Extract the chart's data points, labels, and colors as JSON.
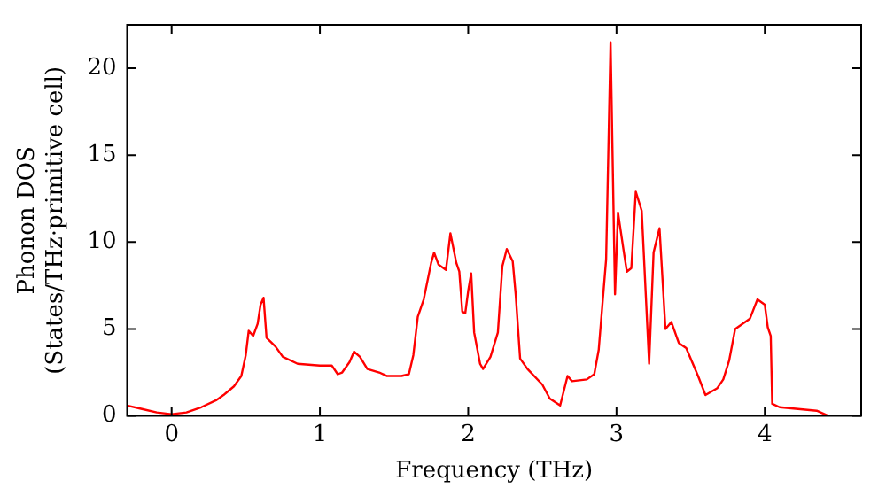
{
  "chart_data": {
    "type": "line",
    "xlabel": "Frequency (THz)",
    "ylabel": "Phonon DOS\n(States/THz·primitive cell)",
    "xlim": [
      -0.3,
      4.65
    ],
    "ylim": [
      0,
      22.5
    ],
    "xticks": [
      0,
      1,
      2,
      3,
      4
    ],
    "yticks": [
      0,
      5,
      10,
      15,
      20
    ],
    "grid": false,
    "legend": false,
    "marker": "none",
    "line_style": "solid",
    "x": [
      -0.3,
      -0.2,
      -0.1,
      0,
      0.1,
      0.2,
      0.3,
      0.35,
      0.42,
      0.47,
      0.5,
      0.52,
      0.55,
      0.58,
      0.6,
      0.62,
      0.64,
      0.7,
      0.75,
      0.85,
      1.0,
      1.08,
      1.12,
      1.15,
      1.2,
      1.23,
      1.27,
      1.32,
      1.4,
      1.45,
      1.55,
      1.6,
      1.63,
      1.66,
      1.7,
      1.75,
      1.77,
      1.8,
      1.85,
      1.88,
      1.92,
      1.94,
      1.96,
      1.98,
      2.0,
      2.02,
      2.04,
      2.08,
      2.1,
      2.15,
      2.2,
      2.23,
      2.26,
      2.3,
      2.32,
      2.35,
      2.4,
      2.5,
      2.55,
      2.62,
      2.67,
      2.7,
      2.8,
      2.85,
      2.88,
      2.93,
      2.96,
      2.99,
      3.01,
      3.05,
      3.07,
      3.1,
      3.13,
      3.17,
      3.22,
      3.25,
      3.29,
      3.33,
      3.37,
      3.42,
      3.47,
      3.55,
      3.6,
      3.68,
      3.72,
      3.76,
      3.8,
      3.9,
      3.95,
      4.0,
      4.02,
      4.04,
      4.05,
      4.1,
      4.35,
      4.43
    ],
    "series": [
      {
        "color": "#ff0000",
        "values": [
          0.6,
          0.4,
          0.2,
          0.1,
          0.2,
          0.5,
          0.9,
          1.2,
          1.7,
          2.3,
          3.5,
          4.9,
          4.6,
          5.3,
          6.4,
          6.8,
          4.5,
          4.0,
          3.4,
          3.0,
          2.9,
          2.9,
          2.4,
          2.5,
          3.1,
          3.7,
          3.4,
          2.7,
          2.5,
          2.3,
          2.3,
          2.4,
          3.5,
          5.7,
          6.7,
          8.8,
          9.4,
          8.7,
          8.4,
          10.5,
          8.8,
          8.3,
          6.0,
          5.9,
          7.2,
          8.2,
          4.8,
          3.0,
          2.7,
          3.4,
          4.8,
          8.6,
          9.6,
          8.9,
          7.0,
          3.3,
          2.7,
          1.8,
          1.0,
          0.6,
          2.3,
          2.0,
          2.1,
          2.4,
          3.8,
          9,
          21.5,
          7.0,
          11.7,
          9.4,
          8.3,
          8.5,
          12.9,
          11.8,
          3.0,
          9.4,
          10.8,
          5.0,
          5.4,
          4.2,
          3.9,
          2.3,
          1.2,
          1.6,
          2.1,
          3.2,
          5.0,
          5.6,
          6.7,
          6.4,
          5.1,
          4.6,
          0.7,
          0.5,
          0.3,
          0.0
        ]
      }
    ]
  }
}
